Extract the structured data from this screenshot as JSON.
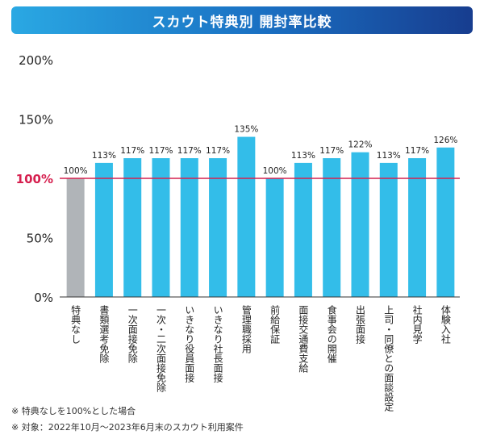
{
  "chart_data": {
    "type": "bar",
    "title": "スカウト特典別 開封率比較",
    "xlabel": "",
    "ylabel": "",
    "ylim": [
      0,
      200
    ],
    "yticks": [
      "0%",
      "50%",
      "100%",
      "150%",
      "200%"
    ],
    "reference_line": 100,
    "categories": [
      "特典なし",
      "書類選考免除",
      "一次面接免除",
      "一次・二次面接免除",
      "いきなり役員面接",
      "いきなり社長面接",
      "管理職採用",
      "前給保証",
      "面接交通費支給",
      "食事会の開催",
      "出張面接",
      "上司・同僚との面談設定",
      "社内見学",
      "体験入社"
    ],
    "values": [
      100,
      113,
      117,
      117,
      117,
      117,
      135,
      100,
      113,
      117,
      122,
      113,
      117,
      126
    ],
    "value_labels": [
      "100%",
      "113%",
      "117%",
      "117%",
      "117%",
      "117%",
      "135%",
      "100%",
      "113%",
      "117%",
      "122%",
      "113%",
      "117%",
      "126%"
    ],
    "colors": {
      "baseline_bar": "#b0b4b8",
      "bar": "#33bde9",
      "reference_line": "#d6204f"
    }
  },
  "notes": [
    "※ 特典なしを100%とした場合",
    "※ 対象：2022年10月～2023年6月末のスカウト利用案件"
  ]
}
